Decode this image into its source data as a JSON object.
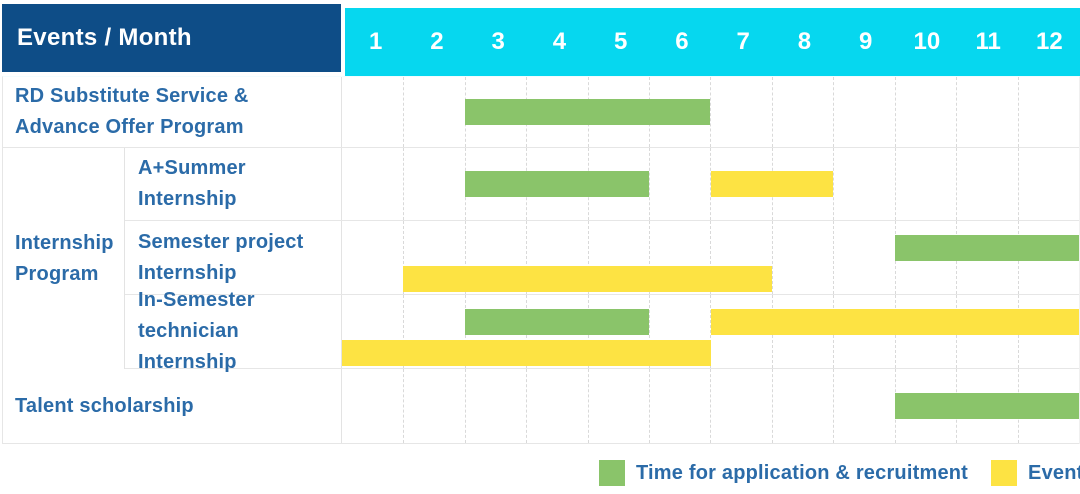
{
  "colors": {
    "header_bg": "#0e4d87",
    "months_bg": "#06d7ef",
    "application_bar": "#8ac46a",
    "event_bar": "#fde343",
    "label_text": "#2b6ba8",
    "header_text": "#ffffff"
  },
  "header": {
    "corner_label": "Events / Month"
  },
  "months": [
    "1",
    "2",
    "3",
    "4",
    "5",
    "6",
    "7",
    "8",
    "9",
    "10",
    "11",
    "12"
  ],
  "chart_data": {
    "type": "table",
    "subtype": "gantt-schedule",
    "title": "Events / Month",
    "x_axis": {
      "label": "Month",
      "ticks": [
        1,
        2,
        3,
        4,
        5,
        6,
        7,
        8,
        9,
        10,
        11,
        12
      ],
      "range": [
        1,
        12
      ]
    },
    "grid": "vertical-dashed",
    "legend_position": "bottom-right",
    "series_names": {
      "application": "Time for application & recruitment",
      "event": "Events"
    },
    "rows": [
      {
        "label_lines": [
          "RD Substitute Service &",
          "Advance Offer Program"
        ],
        "group": null,
        "bars": [
          {
            "series": "application",
            "start_month": 3,
            "end_month": 6,
            "track": "single"
          }
        ]
      },
      {
        "label_lines": [
          "A+Summer",
          "Internship"
        ],
        "group": "Internship Program",
        "bars": [
          {
            "series": "application",
            "start_month": 3,
            "end_month": 5,
            "track": "single"
          },
          {
            "series": "event",
            "start_month": 7,
            "end_month": 8,
            "track": "single"
          }
        ]
      },
      {
        "label_lines": [
          "Semester project",
          "Internship"
        ],
        "group": "Internship Program",
        "bars": [
          {
            "series": "application",
            "start_month": 10,
            "end_month": 12,
            "track": "upper"
          },
          {
            "series": "event",
            "start_month": 2,
            "end_month": 7,
            "track": "lower"
          }
        ]
      },
      {
        "label_lines": [
          "In-Semester",
          "technician Internship"
        ],
        "group": "Internship Program",
        "bars": [
          {
            "series": "application",
            "start_month": 3,
            "end_month": 5,
            "track": "upper"
          },
          {
            "series": "event",
            "start_month": 7,
            "end_month": 12,
            "track": "upper"
          },
          {
            "series": "event",
            "start_month": 1,
            "end_month": 6,
            "track": "lower"
          }
        ]
      },
      {
        "label_lines": [
          "Talent scholarship"
        ],
        "group": null,
        "bars": [
          {
            "series": "application",
            "start_month": 10,
            "end_month": 12,
            "track": "single"
          }
        ]
      }
    ]
  },
  "group_label_lines": [
    "Internship",
    "Program"
  ],
  "legend": {
    "items": [
      {
        "series": "application",
        "label": "Time for application & recruitment"
      },
      {
        "series": "event",
        "label": "Events"
      }
    ]
  }
}
